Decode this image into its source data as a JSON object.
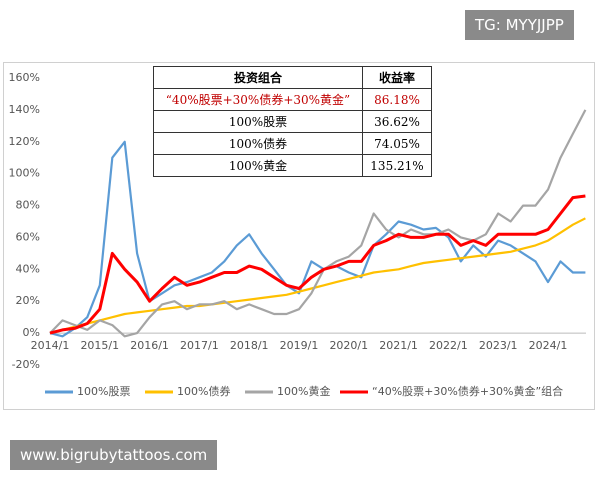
{
  "chart_data": {
    "type": "line",
    "x": [
      "2014/1",
      "2014/4",
      "2014/7",
      "2014/10",
      "2015/1",
      "2015/4",
      "2015/7",
      "2015/10",
      "2016/1",
      "2016/4",
      "2016/7",
      "2016/10",
      "2017/1",
      "2017/4",
      "2017/7",
      "2017/10",
      "2018/1",
      "2018/4",
      "2018/7",
      "2018/10",
      "2019/1",
      "2019/4",
      "2019/7",
      "2019/10",
      "2020/1",
      "2020/4",
      "2020/7",
      "2020/10",
      "2021/1",
      "2021/4",
      "2021/7",
      "2021/10",
      "2022/1",
      "2022/4",
      "2022/7",
      "2022/10",
      "2023/1",
      "2023/4",
      "2023/7",
      "2023/10",
      "2024/1",
      "2024/4",
      "2024/7",
      "2024/10"
    ],
    "series": [
      {
        "name": "100%股票",
        "color": "#5b9bd5",
        "values": [
          0,
          -2,
          3,
          10,
          30,
          110,
          120,
          50,
          20,
          25,
          30,
          32,
          35,
          38,
          45,
          55,
          62,
          50,
          40,
          30,
          25,
          45,
          40,
          42,
          38,
          35,
          55,
          62,
          70,
          68,
          65,
          66,
          60,
          45,
          55,
          48,
          58,
          55,
          50,
          45,
          32,
          45,
          38,
          38
        ]
      },
      {
        "name": "100%债券",
        "color": "#ffc000",
        "values": [
          0,
          2,
          4,
          6,
          8,
          10,
          12,
          13,
          14,
          15,
          16,
          17,
          17,
          18,
          19,
          20,
          21,
          22,
          23,
          24,
          26,
          28,
          30,
          32,
          34,
          36,
          38,
          39,
          40,
          42,
          44,
          45,
          46,
          47,
          48,
          49,
          50,
          51,
          53,
          55,
          58,
          63,
          68,
          72
        ]
      },
      {
        "name": "100%黄金",
        "color": "#a5a5a5",
        "values": [
          0,
          8,
          5,
          2,
          8,
          5,
          -2,
          0,
          10,
          18,
          20,
          15,
          18,
          18,
          20,
          15,
          18,
          15,
          12,
          12,
          15,
          25,
          40,
          45,
          48,
          55,
          75,
          65,
          60,
          65,
          62,
          62,
          65,
          60,
          58,
          62,
          75,
          70,
          80,
          80,
          90,
          110,
          125,
          140
        ]
      },
      {
        "name": "“40%股票+30%债券+30%黄金”组合",
        "color": "#ff0000",
        "values": [
          0,
          2,
          3,
          6,
          15,
          50,
          40,
          32,
          20,
          28,
          35,
          30,
          32,
          35,
          38,
          38,
          42,
          40,
          35,
          30,
          28,
          35,
          40,
          42,
          45,
          45,
          55,
          58,
          62,
          60,
          60,
          62,
          62,
          55,
          58,
          55,
          62,
          62,
          62,
          62,
          65,
          75,
          85,
          86
        ]
      }
    ],
    "ylim": [
      -20,
      160
    ],
    "yticks": [
      {
        "value": -20,
        "label": "-20%"
      },
      {
        "value": 0,
        "label": "0%"
      },
      {
        "value": 20,
        "label": "20%"
      },
      {
        "value": 40,
        "label": "40%"
      },
      {
        "value": 60,
        "label": "60%"
      },
      {
        "value": 80,
        "label": "80%"
      },
      {
        "value": 100,
        "label": "100%"
      },
      {
        "value": 120,
        "label": "120%"
      },
      {
        "value": 140,
        "label": "140%"
      },
      {
        "value": 160,
        "label": "160%"
      }
    ],
    "xticks": [
      "2014/1",
      "2015/1",
      "2016/1",
      "2017/1",
      "2018/1",
      "2019/1",
      "2020/1",
      "2021/1",
      "2022/1",
      "2023/1",
      "2024/1"
    ],
    "legend": "bottom",
    "table": {
      "header": [
        "投资组合",
        "收益率"
      ],
      "rows": [
        [
          "“40%股票+30%债券+30%黄金”",
          {
            "value": 86.18,
            "label": "86.18%"
          }
        ],
        [
          "100%股票",
          {
            "value": 36.62,
            "label": "36.62%"
          }
        ],
        [
          "100%债券",
          {
            "value": 74.05,
            "label": "74.05%"
          }
        ],
        [
          "100%黄金",
          {
            "value": 135.21,
            "label": "135.21%"
          }
        ]
      ]
    }
  },
  "watermarks": [
    "TG: MYYJJPP",
    "www.bigrubytattoos.com"
  ]
}
